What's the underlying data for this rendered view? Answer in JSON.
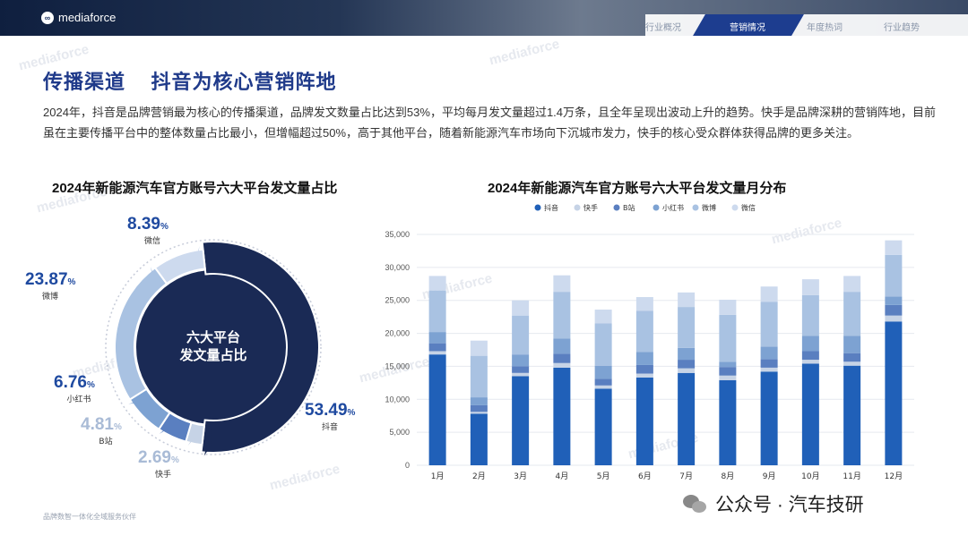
{
  "header": {
    "logo_text": "mediaforce",
    "nav": [
      {
        "label": "行业概况",
        "active": false
      },
      {
        "label": "营销情况",
        "active": true
      },
      {
        "label": "年度热词",
        "active": false
      },
      {
        "label": "行业趋势",
        "active": false
      }
    ]
  },
  "page": {
    "title": "传播渠道    抖音为核心营销阵地",
    "intro": "2024年，抖音是品牌营销最为核心的传播渠道，品牌发文数量占比达到53%，平均每月发文量超过1.4万条，且全年呈现出波动上升的趋势。快手是品牌深耕的营销阵地，目前虽在主要传播平台中的整体数量占比最小，但增幅超过50%，高于其他平台，随着新能源汽车市场向下沉城市发力，快手的核心受众群体获得品牌的更多关注。",
    "footer_note": "品牌数智一体化全域服务伙伴",
    "credit": "公众号 · 汽车技研",
    "watermark": "mediaforce"
  },
  "colors": {
    "douyin": "#2060b8",
    "kuaishou": "#c6d3e6",
    "bilibili": "#5a7fc0",
    "xiaohongshu": "#7da2d2",
    "weibo": "#a9c2e2",
    "weixin": "#cddaee",
    "ring_dark": "#1a2a55"
  },
  "chart_data": [
    {
      "type": "pie",
      "title": "2024年新能源汽车官方账号六大平台发文量占比",
      "center_label": [
        "六大平台",
        "发文量占比"
      ],
      "slices": [
        {
          "name": "抖音",
          "value": 53.49,
          "label": "53.49",
          "unit": "%"
        },
        {
          "name": "快手",
          "value": 2.69,
          "label": "2.69",
          "unit": "%"
        },
        {
          "name": "B站",
          "value": 4.81,
          "label": "4.81",
          "unit": "%"
        },
        {
          "name": "小红书",
          "value": 6.76,
          "label": "6.76",
          "unit": "%"
        },
        {
          "name": "微博",
          "value": 23.87,
          "label": "23.87",
          "unit": "%"
        },
        {
          "name": "微信",
          "value": 8.39,
          "label": "8.39",
          "unit": "%"
        }
      ]
    },
    {
      "type": "bar",
      "stacked": true,
      "title": "2024年新能源汽车官方账号六大平台发文量月分布",
      "categories": [
        "1月",
        "2月",
        "3月",
        "4月",
        "5月",
        "6月",
        "7月",
        "8月",
        "9月",
        "10月",
        "11月",
        "12月"
      ],
      "ylim": [
        0,
        35000
      ],
      "yticks": [
        "0",
        "5,000",
        "10,000",
        "15,000",
        "20,000",
        "25,000",
        "30,000",
        "35,000"
      ],
      "legend_position": "top",
      "grid": true,
      "series": [
        {
          "name": "抖音",
          "values": [
            16800,
            7800,
            13500,
            14800,
            11600,
            13300,
            14000,
            12900,
            14200,
            15400,
            15100,
            21800
          ]
        },
        {
          "name": "快手",
          "values": [
            500,
            300,
            500,
            700,
            500,
            600,
            700,
            700,
            600,
            600,
            600,
            900
          ]
        },
        {
          "name": "B站",
          "values": [
            1200,
            1000,
            1000,
            1400,
            1000,
            1300,
            1300,
            1300,
            1300,
            1300,
            1300,
            1600
          ]
        },
        {
          "name": "小红书",
          "values": [
            1700,
            1200,
            1800,
            2300,
            2000,
            2000,
            1800,
            800,
            1900,
            2300,
            2600,
            1300
          ]
        },
        {
          "name": "微博",
          "values": [
            6300,
            6300,
            5900,
            7100,
            6400,
            6200,
            6200,
            7100,
            6800,
            6200,
            6700,
            6300
          ]
        },
        {
          "name": "微信",
          "values": [
            2200,
            2300,
            2300,
            2500,
            2100,
            2100,
            2200,
            2300,
            2300,
            2400,
            2400,
            2200
          ]
        }
      ]
    }
  ]
}
